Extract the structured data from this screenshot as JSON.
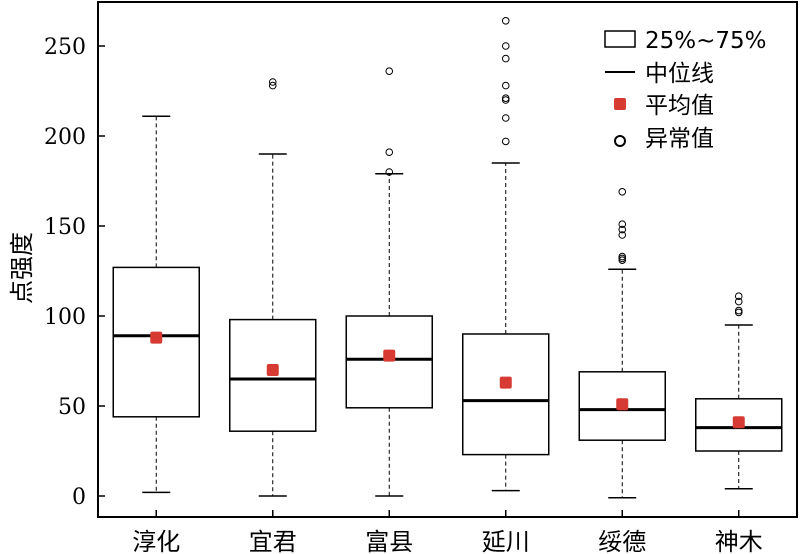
{
  "chart_data": {
    "type": "boxplot",
    "ylabel": "点强度",
    "ylim": [
      -10,
      270
    ],
    "yticks": [
      0,
      50,
      100,
      150,
      200,
      250
    ],
    "categories": [
      "淳化",
      "宜君",
      "富县",
      "延川",
      "绥德",
      "神木"
    ],
    "boxes": [
      {
        "category": "淳化",
        "whisker_low": 2,
        "q1": 44,
        "median": 89,
        "q3": 127,
        "whisker_high": 211,
        "mean": 88,
        "outliers": []
      },
      {
        "category": "宜君",
        "whisker_low": 0,
        "q1": 36,
        "median": 65,
        "q3": 98,
        "whisker_high": 190,
        "mean": 70,
        "outliers": [
          228,
          230
        ]
      },
      {
        "category": "富县",
        "whisker_low": 0,
        "q1": 49,
        "median": 76,
        "q3": 100,
        "whisker_high": 179,
        "mean": 78,
        "outliers": [
          180,
          191,
          236
        ]
      },
      {
        "category": "延川",
        "whisker_low": 3,
        "q1": 23,
        "median": 53,
        "q3": 90,
        "whisker_high": 185,
        "mean": 63,
        "outliers": [
          197,
          210,
          220,
          221,
          228,
          243,
          250,
          264
        ]
      },
      {
        "category": "绥德",
        "whisker_low": -1,
        "q1": 31,
        "median": 48,
        "q3": 69,
        "whisker_high": 126,
        "mean": 51,
        "outliers": [
          131,
          132,
          133,
          145,
          148,
          151,
          169
        ]
      },
      {
        "category": "神木",
        "whisker_low": 4,
        "q1": 25,
        "median": 38,
        "q3": 54,
        "whisker_high": 95,
        "mean": 41,
        "outliers": [
          102,
          103,
          108,
          111
        ]
      }
    ],
    "legend": {
      "position": "top-right",
      "box_label": "25%~75%",
      "median_label": "中位线",
      "mean_label": "平均值",
      "outlier_label": "异常值"
    },
    "colors": {
      "mean": "#d63a32",
      "box": "#000000"
    },
    "grid": false
  }
}
